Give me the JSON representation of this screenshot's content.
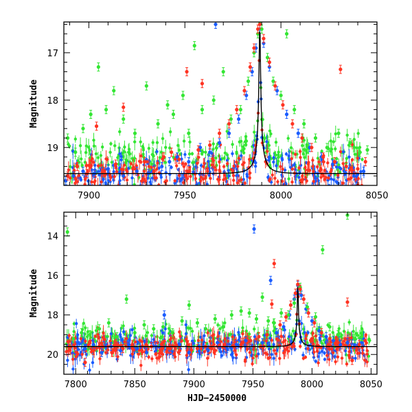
{
  "colors": {
    "blue": "#1a5cff",
    "green": "#33e633",
    "red": "#ff3322",
    "model": "#000000"
  },
  "chart_data": [
    {
      "type": "scatter",
      "title": "",
      "xlabel": "",
      "ylabel": "Magnitude",
      "xlim": [
        7887,
        8050
      ],
      "ylim": [
        19.8,
        16.35
      ],
      "y_inverted": true,
      "x_ticks": [
        "7900",
        "7950",
        "8000",
        "8050"
      ],
      "y_ticks": [
        "17",
        "18",
        "19"
      ],
      "model": {
        "peak_time": 7989,
        "peak_mag": 16.4,
        "baseline_mag": 19.55,
        "tE": 8.0
      },
      "baseline_scatter": 0.22,
      "series": [
        {
          "color_key": "blue",
          "points": [
            [
              7888,
              19.7
            ],
            [
              7892,
              19.6
            ],
            [
              7897,
              19.5
            ],
            [
              7903,
              19.55
            ],
            [
              7910,
              19.45
            ],
            [
              7918,
              19.6
            ],
            [
              7925,
              19.5
            ],
            [
              7931,
              19.55
            ],
            [
              7938,
              19.4
            ],
            [
              7942,
              19.3
            ],
            [
              7946,
              19.2
            ],
            [
              7952,
              19.3
            ],
            [
              7958,
              19.0
            ],
            [
              7963,
              19.1
            ],
            [
              7968,
              18.9
            ],
            [
              7973,
              18.7
            ],
            [
              7978,
              18.4
            ],
            [
              7982,
              17.9
            ],
            [
              7985,
              17.4
            ],
            [
              7987,
              16.9
            ],
            [
              7989,
              16.5
            ],
            [
              7991,
              16.8
            ],
            [
              7994,
              17.3
            ],
            [
              7998,
              17.8
            ],
            [
              8003,
              18.3
            ],
            [
              8009,
              18.7
            ],
            [
              8015,
              19.0
            ],
            [
              8021,
              19.2
            ],
            [
              8027,
              19.35
            ],
            [
              8033,
              19.5
            ],
            [
              8038,
              19.6
            ],
            [
              8043,
              19.5
            ],
            [
              7966,
              16.4
            ]
          ]
        },
        {
          "color_key": "green",
          "points": [
            [
              7889,
              18.8
            ],
            [
              7893,
              19.1
            ],
            [
              7897,
              18.6
            ],
            [
              7901,
              18.3
            ],
            [
              7905,
              17.3
            ],
            [
              7909,
              18.2
            ],
            [
              7913,
              17.8
            ],
            [
              7918,
              18.4
            ],
            [
              7924,
              18.7
            ],
            [
              7930,
              17.7
            ],
            [
              7936,
              18.5
            ],
            [
              7941,
              18.1
            ],
            [
              7944,
              18.3
            ],
            [
              7949,
              17.9
            ],
            [
              7952,
              18.7
            ],
            [
              7955,
              16.85
            ],
            [
              7959,
              18.2
            ],
            [
              7965,
              18.0
            ],
            [
              7970,
              17.4
            ],
            [
              7974,
              18.4
            ],
            [
              7979,
              18.2
            ],
            [
              7983,
              17.6
            ],
            [
              7986,
              17.0
            ],
            [
              7988,
              16.6
            ],
            [
              7990,
              16.5
            ],
            [
              7993,
              17.1
            ],
            [
              7996,
              17.6
            ],
            [
              8000,
              17.9
            ],
            [
              8003,
              16.6
            ],
            [
              8007,
              18.2
            ],
            [
              8012,
              18.5
            ],
            [
              8018,
              18.8
            ],
            [
              8024,
              19.0
            ],
            [
              8030,
              18.7
            ],
            [
              8036,
              18.9
            ],
            [
              8041,
              19.1
            ],
            [
              8045,
              19.05
            ]
          ]
        },
        {
          "color_key": "red",
          "points": [
            [
              7889,
              19.6
            ],
            [
              7894,
              19.4
            ],
            [
              7899,
              19.55
            ],
            [
              7904,
              18.55
            ],
            [
              7908,
              19.5
            ],
            [
              7914,
              19.35
            ],
            [
              7918,
              18.15
            ],
            [
              7923,
              19.45
            ],
            [
              7929,
              19.3
            ],
            [
              7934,
              19.5
            ],
            [
              7939,
              19.2
            ],
            [
              7943,
              19.1
            ],
            [
              7947,
              19.25
            ],
            [
              7951,
              17.4
            ],
            [
              7957,
              19.05
            ],
            [
              7959,
              17.65
            ],
            [
              7963,
              18.95
            ],
            [
              7968,
              18.7
            ],
            [
              7973,
              18.5
            ],
            [
              7977,
              18.2
            ],
            [
              7981,
              17.8
            ],
            [
              7984,
              17.3
            ],
            [
              7986,
              16.9
            ],
            [
              7988,
              16.5
            ],
            [
              7989,
              16.4
            ],
            [
              7991,
              16.7
            ],
            [
              7994,
              17.2
            ],
            [
              7997,
              17.7
            ],
            [
              8001,
              18.1
            ],
            [
              8006,
              18.5
            ],
            [
              8011,
              18.8
            ],
            [
              8016,
              19.0
            ],
            [
              8022,
              19.2
            ],
            [
              8028,
              19.3
            ],
            [
              8031,
              17.35
            ],
            [
              8034,
              19.4
            ],
            [
              8040,
              19.45
            ],
            [
              8044,
              19.3
            ]
          ]
        }
      ]
    },
    {
      "type": "scatter",
      "title": "",
      "xlabel": "HJD−2450000",
      "ylabel": "Magnitude",
      "xlim": [
        7790,
        8055
      ],
      "ylim": [
        21.0,
        12.8
      ],
      "y_inverted": true,
      "x_ticks": [
        "7800",
        "7850",
        "7900",
        "7950",
        "8000",
        "8050"
      ],
      "y_ticks": [
        "14",
        "16",
        "18",
        "20"
      ],
      "model": {
        "peak_time": 7988,
        "peak_mag": 16.45,
        "baseline_mag": 19.6,
        "tE": 9.0
      },
      "baseline_scatter": 0.35,
      "series": [
        {
          "color_key": "blue",
          "points": [
            [
              7808,
              19.7
            ],
            [
              7815,
              19.5
            ],
            [
              7822,
              19.9
            ],
            [
              7830,
              19.6
            ],
            [
              7838,
              19.8
            ],
            [
              7845,
              19.5
            ],
            [
              7852,
              19.7
            ],
            [
              7860,
              19.9
            ],
            [
              7868,
              19.6
            ],
            [
              7875,
              18.0
            ],
            [
              7880,
              19.8
            ],
            [
              7888,
              19.5
            ],
            [
              7896,
              19.9
            ],
            [
              7904,
              19.6
            ],
            [
              7912,
              19.8
            ],
            [
              7920,
              19.4
            ],
            [
              7928,
              19.7
            ],
            [
              7936,
              19.5
            ],
            [
              7944,
              19.3
            ],
            [
              7951,
              13.65
            ],
            [
              7958,
              19.4
            ],
            [
              7965,
              16.25
            ],
            [
              7970,
              18.9
            ],
            [
              7976,
              18.6
            ],
            [
              7981,
              18.0
            ],
            [
              7985,
              17.2
            ],
            [
              7988,
              16.5
            ],
            [
              7991,
              17.0
            ],
            [
              7995,
              17.7
            ],
            [
              8000,
              18.3
            ],
            [
              8006,
              18.8
            ],
            [
              8012,
              19.1
            ],
            [
              8018,
              19.3
            ],
            [
              8024,
              19.5
            ],
            [
              8030,
              19.4
            ],
            [
              8036,
              19.5
            ],
            [
              8042,
              19.4
            ]
          ]
        },
        {
          "color_key": "green",
          "points": [
            [
              7793,
              13.8
            ],
            [
              7798,
              19.2
            ],
            [
              7805,
              18.9
            ],
            [
              7812,
              19.0
            ],
            [
              7820,
              18.7
            ],
            [
              7828,
              18.4
            ],
            [
              7835,
              19.1
            ],
            [
              7843,
              17.2
            ],
            [
              7850,
              18.9
            ],
            [
              7858,
              18.5
            ],
            [
              7866,
              18.7
            ],
            [
              7874,
              18.6
            ],
            [
              7882,
              18.9
            ],
            [
              7890,
              18.3
            ],
            [
              7896,
              17.5
            ],
            [
              7903,
              18.4
            ],
            [
              7910,
              18.7
            ],
            [
              7918,
              18.2
            ],
            [
              7925,
              18.6
            ],
            [
              7932,
              18.0
            ],
            [
              7940,
              17.8
            ],
            [
              7947,
              17.9
            ],
            [
              7953,
              18.2
            ],
            [
              7958,
              17.1
            ],
            [
              7963,
              18.3
            ],
            [
              7968,
              18.4
            ],
            [
              7974,
              17.9
            ],
            [
              7980,
              18.0
            ],
            [
              7985,
              17.4
            ],
            [
              7990,
              16.6
            ],
            [
              7996,
              17.6
            ],
            [
              8003,
              18.1
            ],
            [
              8009,
              14.7
            ],
            [
              8015,
              18.6
            ],
            [
              8022,
              19.0
            ],
            [
              8030,
              12.95
            ],
            [
              8036,
              19.2
            ],
            [
              8042,
              19.1
            ]
          ]
        },
        {
          "color_key": "red",
          "points": [
            [
              7808,
              20.4
            ],
            [
              7815,
              19.8
            ],
            [
              7823,
              19.6
            ],
            [
              7831,
              19.9
            ],
            [
              7840,
              19.7
            ],
            [
              7848,
              19.5
            ],
            [
              7856,
              19.8
            ],
            [
              7864,
              19.6
            ],
            [
              7872,
              19.9
            ],
            [
              7880,
              19.7
            ],
            [
              7888,
              19.8
            ],
            [
              7895,
              19.5
            ],
            [
              7903,
              19.7
            ],
            [
              7910,
              19.6
            ],
            [
              7918,
              19.8
            ],
            [
              7926,
              19.5
            ],
            [
              7934,
              19.6
            ],
            [
              7941,
              19.4
            ],
            [
              7948,
              19.3
            ],
            [
              7955,
              19.1
            ],
            [
              7962,
              19.0
            ],
            [
              7966,
              17.45
            ],
            [
              7968,
              15.4
            ],
            [
              7973,
              18.5
            ],
            [
              7978,
              18.1
            ],
            [
              7982,
              17.5
            ],
            [
              7986,
              16.9
            ],
            [
              7988,
              16.45
            ],
            [
              7990,
              16.7
            ],
            [
              7993,
              17.2
            ],
            [
              7997,
              17.9
            ],
            [
              8002,
              18.4
            ],
            [
              8008,
              18.9
            ],
            [
              8015,
              19.2
            ],
            [
              8022,
              19.4
            ],
            [
              8030,
              17.35
            ],
            [
              8034,
              20.3
            ],
            [
              8040,
              19.5
            ],
            [
              8045,
              19.3
            ]
          ]
        }
      ]
    }
  ]
}
